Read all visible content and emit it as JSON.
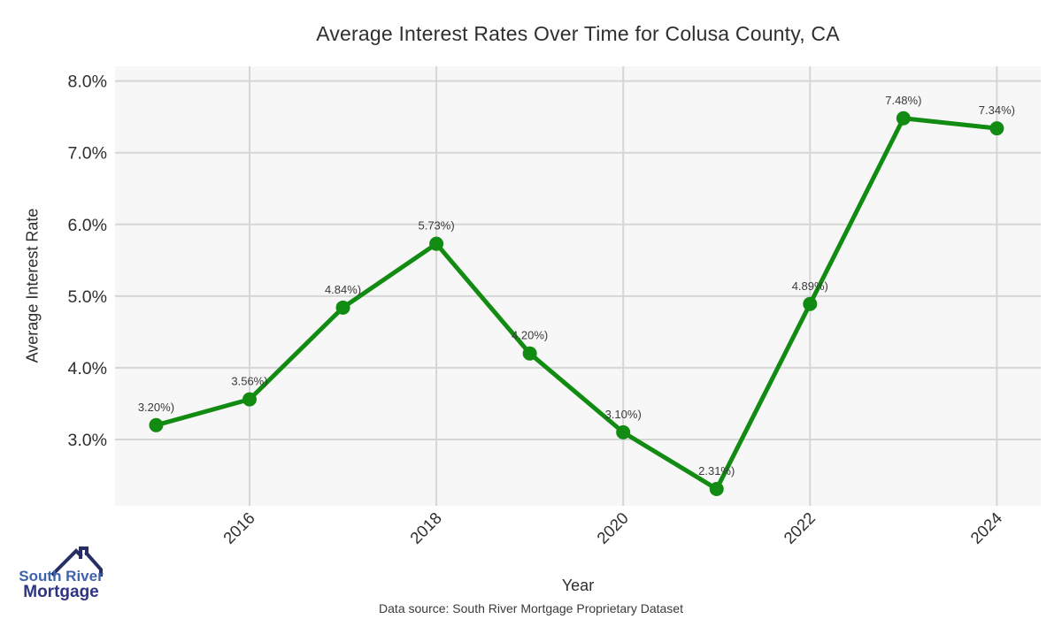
{
  "chart_data": {
    "type": "line",
    "title": "Average Interest Rates Over Time for Colusa County, CA",
    "xlabel": "Year",
    "ylabel": "Average Interest Rate",
    "x": [
      2015,
      2016,
      2017,
      2018,
      2019,
      2020,
      2021,
      2022,
      2023,
      2024
    ],
    "values": [
      3.2,
      3.56,
      4.84,
      5.73,
      4.2,
      3.1,
      2.31,
      4.89,
      7.48,
      7.34
    ],
    "point_labels": [
      "3.20%)",
      "3.56%)",
      "4.84%)",
      "5.73%)",
      "4.20%)",
      "3.10%)",
      "2.31%)",
      "4.89%)",
      "7.48%)",
      "7.34%)"
    ],
    "xticks": {
      "values": [
        2016,
        2018,
        2020,
        2022,
        2024
      ],
      "labels": [
        "2016",
        "2018",
        "2020",
        "2022",
        "2024"
      ]
    },
    "yticks": {
      "values": [
        8,
        7,
        6,
        5,
        4,
        3
      ],
      "labels": [
        "8.0%",
        "7.0%",
        "6.0%",
        "5.0%",
        "4.0%",
        "3.0%"
      ]
    },
    "xlim": [
      2014.56,
      2024.47
    ],
    "ylim": [
      2.075,
      8.205
    ],
    "grid": true,
    "legend": "none",
    "colors": {
      "line": "#118b11",
      "marker": "#118b11",
      "grid": "#d6d6d6",
      "plot_bg": "#f7f7f7",
      "tick_text": "#2e2e2e",
      "point_label_text": "#3a3a3a"
    }
  },
  "footer": {
    "source": "Data source: South River Mortgage Proprietary Dataset"
  },
  "logo": {
    "line1": "South River",
    "line2": "Mortgage",
    "colors": {
      "roof": "#272e63",
      "line1": "#3f63ac",
      "line2": "#2d3484"
    }
  }
}
